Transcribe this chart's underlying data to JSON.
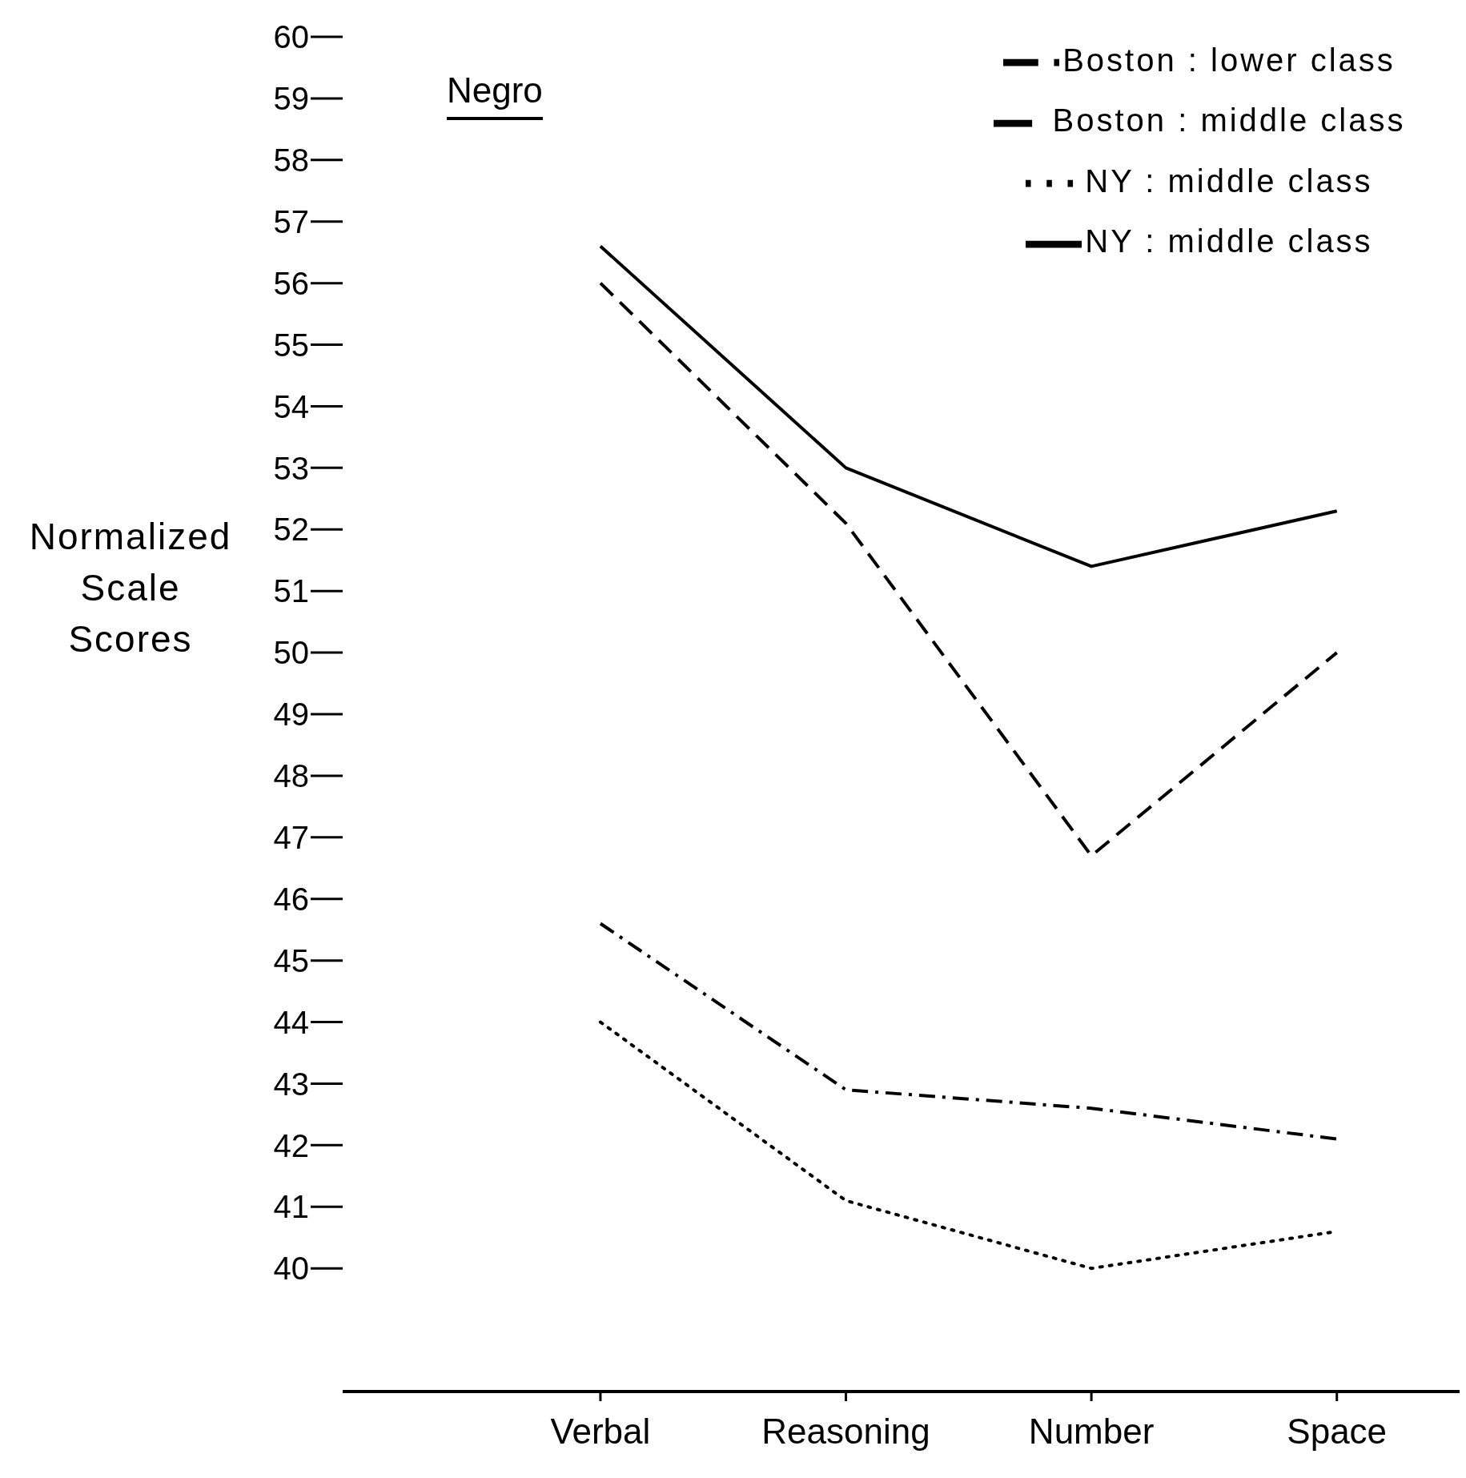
{
  "chart_data": {
    "type": "line",
    "ylabel": "Normalized Scale Scores",
    "annotations": [
      "Negro"
    ],
    "categories": [
      "Verbal",
      "Reasoning",
      "Number",
      "Space"
    ],
    "series": [
      {
        "name": "Boston : middle class",
        "color": "#000000",
        "line_style": "dashed",
        "values": [
          56.0,
          52.1,
          46.7,
          50.0
        ]
      },
      {
        "name": "NY : middle class",
        "color": "#000000",
        "line_style": "solid",
        "values": [
          56.6,
          53.0,
          51.4,
          52.3
        ]
      },
      {
        "name": "Boston : lower class",
        "color": "#000000",
        "line_style": "dashdot",
        "values": [
          45.6,
          42.9,
          42.6,
          42.1
        ]
      },
      {
        "name": "NY :  middle class",
        "color": "#000000",
        "line_style": "dotted",
        "values": [
          44.0,
          41.1,
          40.0,
          40.6
        ]
      }
    ],
    "ylim": [
      38,
      60
    ],
    "yticks": [
      40,
      41,
      42,
      43,
      44,
      45,
      46,
      47,
      48,
      49,
      50,
      51,
      52,
      53,
      54,
      55,
      56,
      57,
      58,
      59,
      60
    ],
    "grid": false,
    "legend": "top right",
    "marker": "none"
  }
}
